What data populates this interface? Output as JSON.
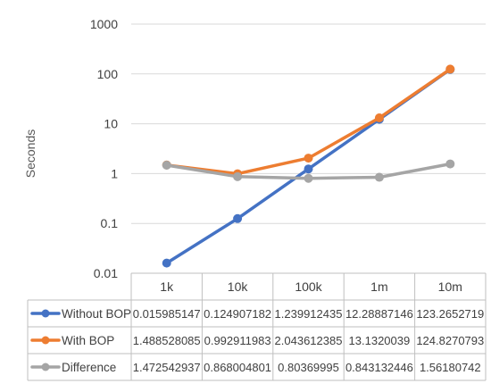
{
  "chart_data": {
    "type": "line",
    "ylabel": "Seconds",
    "yscale": "log",
    "ylim": [
      0.01,
      1000
    ],
    "yticks": [
      "0.01",
      "0.1",
      "1",
      "10",
      "100",
      "1000"
    ],
    "grid": "horizontal",
    "legend": "data-table",
    "categories": [
      "1k",
      "10k",
      "100k",
      "1m",
      "10m"
    ],
    "series": [
      {
        "name": "Without BOP",
        "color": "#4472C4",
        "values": [
          0.015985147,
          0.124907182,
          1.239912435,
          12.28887146,
          123.2652719
        ],
        "labels": [
          "0.015985147",
          "0.124907182",
          "1.239912435",
          "12.28887146",
          "123.2652719"
        ]
      },
      {
        "name": "With BOP",
        "color": "#ED7D31",
        "values": [
          1.488528085,
          0.992911983,
          2.043612385,
          13.1320039,
          124.8270793
        ],
        "labels": [
          "1.488528085",
          "0.992911983",
          "2.043612385",
          "13.1320039",
          "124.8270793"
        ]
      },
      {
        "name": "Difference",
        "color": "#A5A5A5",
        "values": [
          1.472542937,
          0.868004801,
          0.80369995,
          0.843132446,
          1.56180742
        ],
        "labels": [
          "1.472542937",
          "0.868004801",
          "0.80369995",
          "0.843132446",
          "1.56180742"
        ]
      }
    ]
  }
}
